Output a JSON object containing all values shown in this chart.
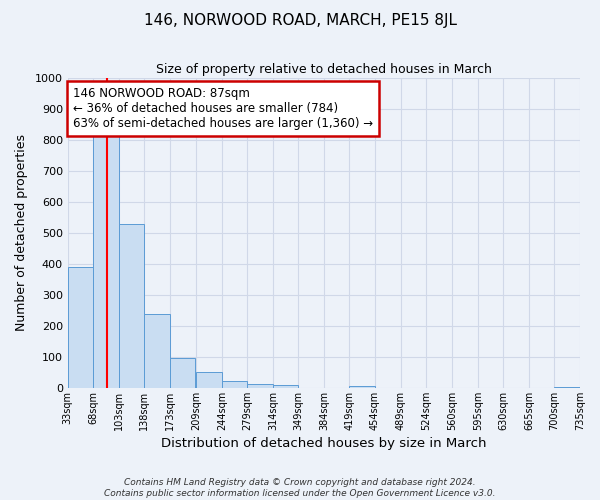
{
  "title": "146, NORWOOD ROAD, MARCH, PE15 8JL",
  "subtitle": "Size of property relative to detached houses in March",
  "xlabel": "Distribution of detached houses by size in March",
  "ylabel": "Number of detached properties",
  "bar_edges": [
    33,
    68,
    103,
    138,
    173,
    209,
    244,
    279,
    314,
    349,
    384,
    419,
    454,
    489,
    524,
    560,
    595,
    630,
    665,
    700,
    735
  ],
  "bar_heights": [
    390,
    830,
    530,
    240,
    97,
    52,
    22,
    14,
    10,
    0,
    0,
    5,
    0,
    0,
    0,
    0,
    0,
    0,
    0,
    3
  ],
  "bar_color": "#c9ddf2",
  "bar_edge_color": "#5b9bd5",
  "red_line_x": 87,
  "ylim": [
    0,
    1000
  ],
  "yticks": [
    0,
    100,
    200,
    300,
    400,
    500,
    600,
    700,
    800,
    900,
    1000
  ],
  "xtick_labels": [
    "33sqm",
    "68sqm",
    "103sqm",
    "138sqm",
    "173sqm",
    "209sqm",
    "244sqm",
    "279sqm",
    "314sqm",
    "349sqm",
    "384sqm",
    "419sqm",
    "454sqm",
    "489sqm",
    "524sqm",
    "560sqm",
    "595sqm",
    "630sqm",
    "665sqm",
    "700sqm",
    "735sqm"
  ],
  "annotation_title": "146 NORWOOD ROAD: 87sqm",
  "annotation_line1": "← 36% of detached houses are smaller (784)",
  "annotation_line2": "63% of semi-detached houses are larger (1,360) →",
  "annotation_box_color": "#ffffff",
  "annotation_box_edge": "#cc0000",
  "grid_color": "#d0d8e8",
  "background_color": "#edf2f9",
  "footer_line1": "Contains HM Land Registry data © Crown copyright and database right 2024.",
  "footer_line2": "Contains public sector information licensed under the Open Government Licence v3.0."
}
